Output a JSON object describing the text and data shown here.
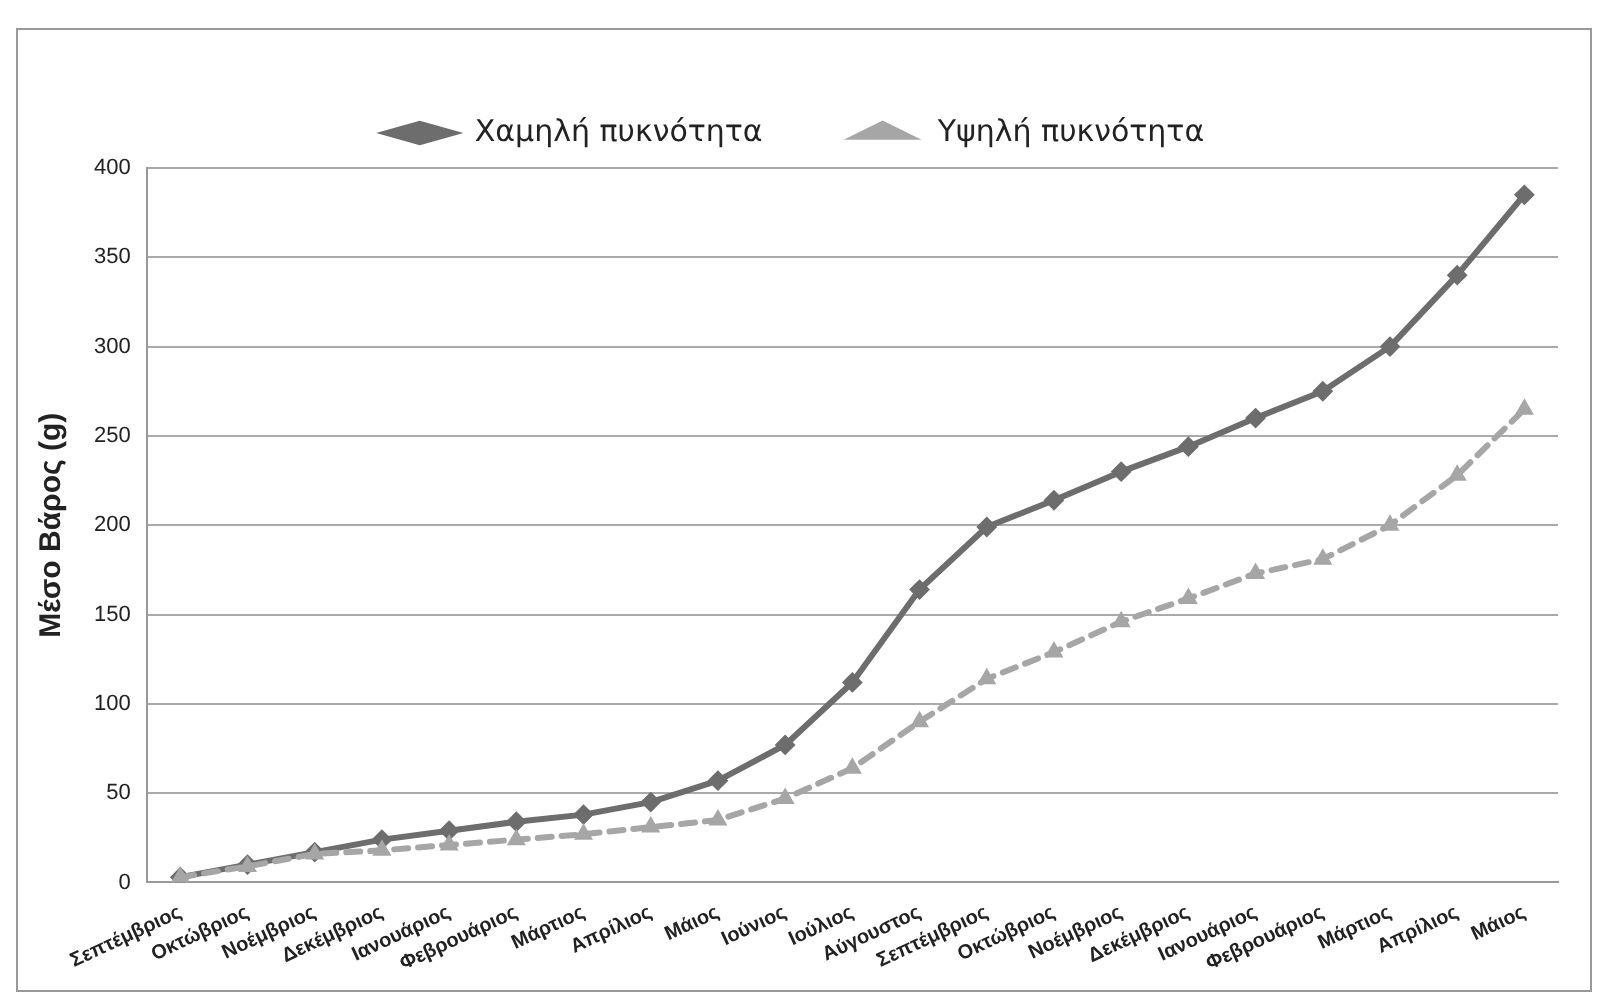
{
  "chart_data": {
    "type": "line",
    "ylabel": "Μέσο Βάρος (g)",
    "categories": [
      "Σεπτέμβριος",
      "Οκτώβριος",
      "Νοέμβριος",
      "Δεκέμβριος",
      "Ιανουάριος",
      "Φεβρουάριος",
      "Μάρτιος",
      "Απρίλιος",
      "Μάιος",
      "Ιούνιος",
      "Ιούλιος",
      "Αύγουστος",
      "Σεπτέμβριος",
      "Οκτώβριος",
      "Νοέμβριος",
      "Δεκέμβριος",
      "Ιανουάριος",
      "Φεβρουάριος",
      "Μάρτιος",
      "Απρίλιος",
      "Μάιος"
    ],
    "series": [
      {
        "name": "Χαμηλή πυκνότητα",
        "color": "#6d6d6d",
        "marker": "diamond",
        "line_style": "solid",
        "values": [
          3,
          10,
          17,
          24,
          29,
          34,
          38,
          45,
          57,
          77,
          112,
          164,
          199,
          214,
          230,
          244,
          260,
          275,
          300,
          340,
          385
        ]
      },
      {
        "name": "Υψηλή πυκνότητα",
        "color": "#a6a6a6",
        "marker": "triangle",
        "line_style": "dashed",
        "values": [
          3,
          9,
          16,
          18,
          21,
          24,
          27,
          31,
          35,
          47,
          64,
          90,
          114,
          129,
          146,
          159,
          173,
          181,
          200,
          228,
          265
        ]
      }
    ],
    "ylim": [
      0,
      400
    ],
    "yticks": [
      0,
      50,
      100,
      150,
      200,
      250,
      300,
      350,
      400
    ],
    "grid": "y",
    "legend": "top"
  }
}
